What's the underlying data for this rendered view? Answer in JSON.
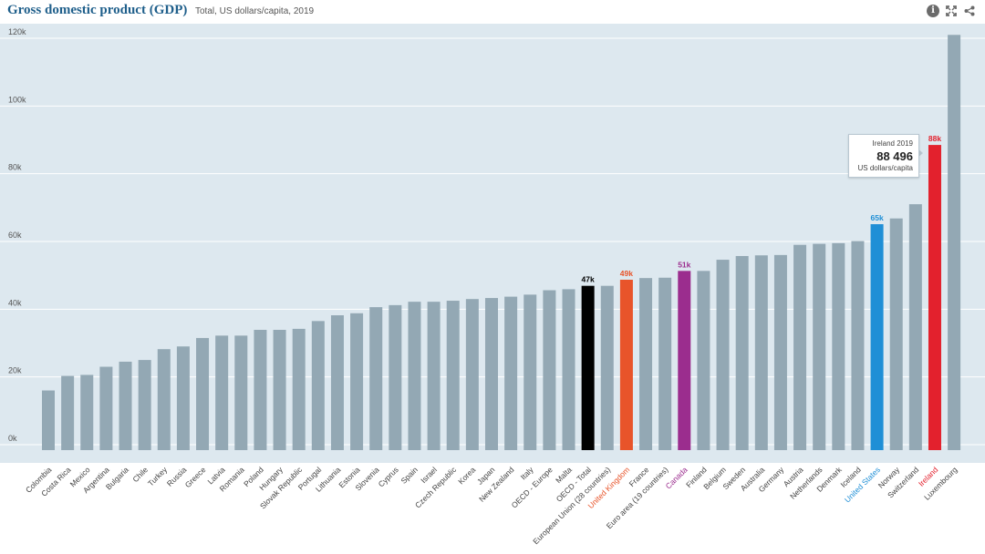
{
  "header": {
    "title": "Gross domestic product (GDP)",
    "subtitle": "Total, US dollars/capita, 2019"
  },
  "icons": [
    "info-icon",
    "expand-icon",
    "share-icon"
  ],
  "tooltip": {
    "title": "Ireland 2019",
    "value": "88 496",
    "unit": "US dollars/capita"
  },
  "colors": {
    "default_bar": "#93a8b4",
    "oecd_total": "#000000",
    "united_kingdom": "#e8542a",
    "canada": "#9b2d8e",
    "united_states": "#1f8fd6",
    "ireland": "#e3212d",
    "plot_background": "#dde8ef",
    "grid": "#ffffff"
  },
  "chart_data": {
    "type": "bar",
    "title": "Gross domestic product (GDP)",
    "subtitle": "Total, US dollars/capita, 2019",
    "ylim": [
      0,
      120000
    ],
    "yticks": [
      0,
      20000,
      40000,
      60000,
      80000,
      100000,
      120000
    ],
    "ytick_labels": [
      "0k",
      "20k",
      "40k",
      "60k",
      "80k",
      "100k",
      "120k"
    ],
    "grid": true,
    "categories": [
      "Colombia",
      "Costa Rica",
      "Mexico",
      "Argentina",
      "Bulgaria",
      "Chile",
      "Turkey",
      "Russia",
      "Greece",
      "Latvia",
      "Romania",
      "Poland",
      "Hungary",
      "Slovak Republic",
      "Portugal",
      "Lithuania",
      "Estonia",
      "Slovenia",
      "Cyprus",
      "Spain",
      "Israel",
      "Czech Republic",
      "Korea",
      "Japan",
      "New Zealand",
      "Italy",
      "OECD - Europe",
      "Malta",
      "OECD - Total",
      "European Union (28 countries)",
      "United Kingdom",
      "France",
      "Euro area (19 countries)",
      "Canada",
      "Finland",
      "Belgium",
      "Sweden",
      "Australia",
      "Germany",
      "Austria",
      "Netherlands",
      "Denmark",
      "Iceland",
      "United States",
      "Norway",
      "Switzerland",
      "Ireland",
      "Luxembourg"
    ],
    "values": [
      16000,
      20300,
      20600,
      23000,
      24500,
      25000,
      28200,
      29000,
      31500,
      32200,
      32200,
      33900,
      33900,
      34200,
      36500,
      38200,
      38800,
      40600,
      41200,
      42200,
      42200,
      42500,
      43000,
      43300,
      43700,
      44300,
      45600,
      45900,
      46900,
      46900,
      48700,
      49200,
      49300,
      51300,
      51300,
      54600,
      55700,
      55900,
      56000,
      59000,
      59300,
      59500,
      60100,
      65100,
      66800,
      71000,
      88496,
      121000
    ],
    "highlights": [
      {
        "category": "OECD - Total",
        "label": "47k",
        "color": "#000000"
      },
      {
        "category": "United Kingdom",
        "label": "49k",
        "color": "#e8542a"
      },
      {
        "category": "Canada",
        "label": "51k",
        "color": "#9b2d8e"
      },
      {
        "category": "United States",
        "label": "65k",
        "color": "#1f8fd6"
      },
      {
        "category": "Ireland",
        "label": "88k",
        "color": "#e3212d"
      }
    ]
  }
}
